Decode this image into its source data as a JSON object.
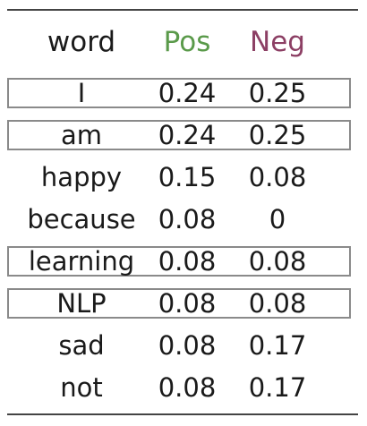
{
  "headers": {
    "word": "word",
    "pos": "Pos",
    "neg": "Neg"
  },
  "colors": {
    "pos": "#5a9a4a",
    "neg": "#8c3f64",
    "rule": "#444444",
    "box": "#8a8a8a"
  },
  "rows": [
    {
      "word": "I",
      "pos": "0.24",
      "neg": "0.25",
      "boxed": true
    },
    {
      "word": "am",
      "pos": "0.24",
      "neg": "0.25",
      "boxed": true
    },
    {
      "word": "happy",
      "pos": "0.15",
      "neg": "0.08",
      "boxed": false
    },
    {
      "word": "because",
      "pos": "0.08",
      "neg": "0",
      "boxed": false
    },
    {
      "word": "learning",
      "pos": "0.08",
      "neg": "0.08",
      "boxed": true
    },
    {
      "word": "NLP",
      "pos": "0.08",
      "neg": "0.08",
      "boxed": true
    },
    {
      "word": "sad",
      "pos": "0.08",
      "neg": "0.17",
      "boxed": false
    },
    {
      "word": "not",
      "pos": "0.08",
      "neg": "0.17",
      "boxed": false
    }
  ]
}
